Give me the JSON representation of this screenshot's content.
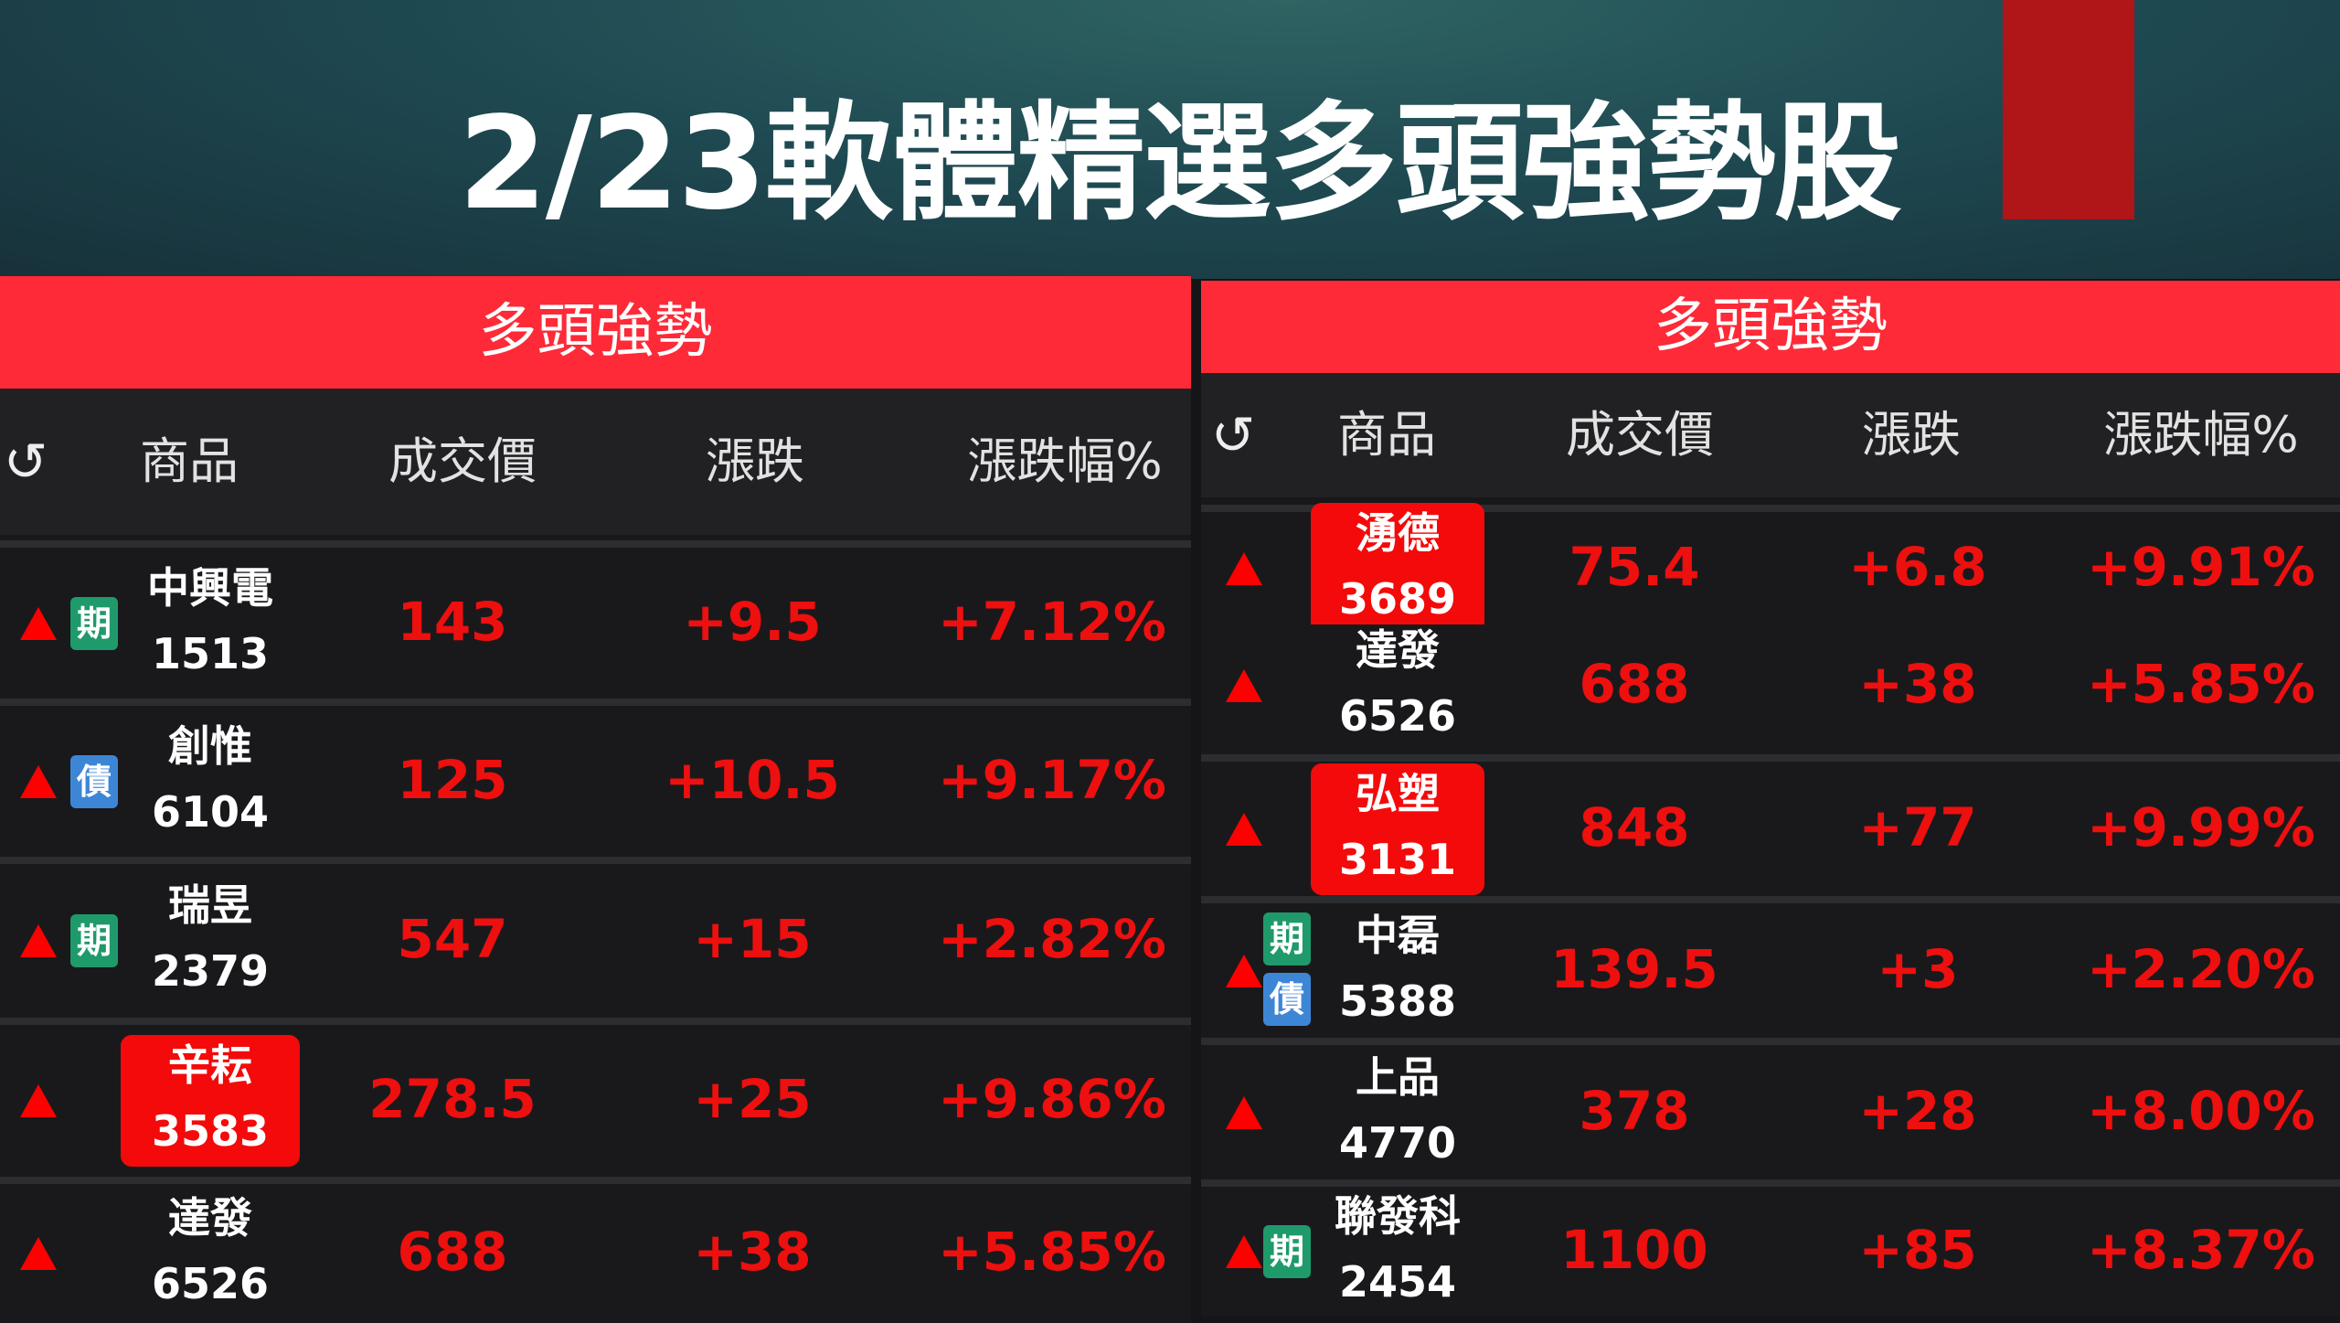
{
  "title": "2/23軟體精選多頭強勢股",
  "colors": {
    "header_red": "#fe2a38",
    "up_red": "#ee0f0f",
    "futures_badge": "#1f9a6a",
    "bond_badge": "#3d86d6"
  },
  "left": {
    "panel_title": "多頭強勢",
    "columns": [
      "商品",
      "成交價",
      "漲跌",
      "漲跌幅%"
    ],
    "refresh_icon": "refresh-icon",
    "rows": [
      {
        "name": "中興電",
        "code": "1513",
        "price": "143",
        "change": "+9.5",
        "pct": "+7.12%",
        "badges": [
          "期"
        ],
        "highlight": false
      },
      {
        "name": "創惟",
        "code": "6104",
        "price": "125",
        "change": "+10.5",
        "pct": "+9.17%",
        "badges": [
          "債"
        ],
        "highlight": false
      },
      {
        "name": "瑞昱",
        "code": "2379",
        "price": "547",
        "change": "+15",
        "pct": "+2.82%",
        "badges": [
          "期"
        ],
        "highlight": false
      },
      {
        "name": "辛耘",
        "code": "3583",
        "price": "278.5",
        "change": "+25",
        "pct": "+9.86%",
        "badges": [],
        "highlight": true
      },
      {
        "name": "達發",
        "code": "6526",
        "price": "688",
        "change": "+38",
        "pct": "+5.85%",
        "badges": [],
        "highlight": false
      }
    ]
  },
  "right": {
    "panel_title": "多頭強勢",
    "columns": [
      "商品",
      "成交價",
      "漲跌",
      "漲跌幅%"
    ],
    "refresh_icon": "refresh-icon",
    "rows": [
      {
        "name": "湧德",
        "code": "3689",
        "price": "75.4",
        "change": "+6.8",
        "pct": "+9.91%",
        "badges": [],
        "highlight": true
      },
      {
        "name": "達發",
        "code": "6526",
        "price": "688",
        "change": "+38",
        "pct": "+5.85%",
        "badges": [],
        "highlight": false
      },
      {
        "name": "弘塑",
        "code": "3131",
        "price": "848",
        "change": "+77",
        "pct": "+9.99%",
        "badges": [],
        "highlight": true
      },
      {
        "name": "中磊",
        "code": "5388",
        "price": "139.5",
        "change": "+3",
        "pct": "+2.20%",
        "badges": [
          "期",
          "債"
        ],
        "highlight": false
      },
      {
        "name": "上品",
        "code": "4770",
        "price": "378",
        "change": "+28",
        "pct": "+8.00%",
        "badges": [],
        "highlight": false
      },
      {
        "name": "聯發科",
        "code": "2454",
        "price": "1100",
        "change": "+85",
        "pct": "+8.37%",
        "badges": [
          "期"
        ],
        "highlight": false
      }
    ]
  }
}
